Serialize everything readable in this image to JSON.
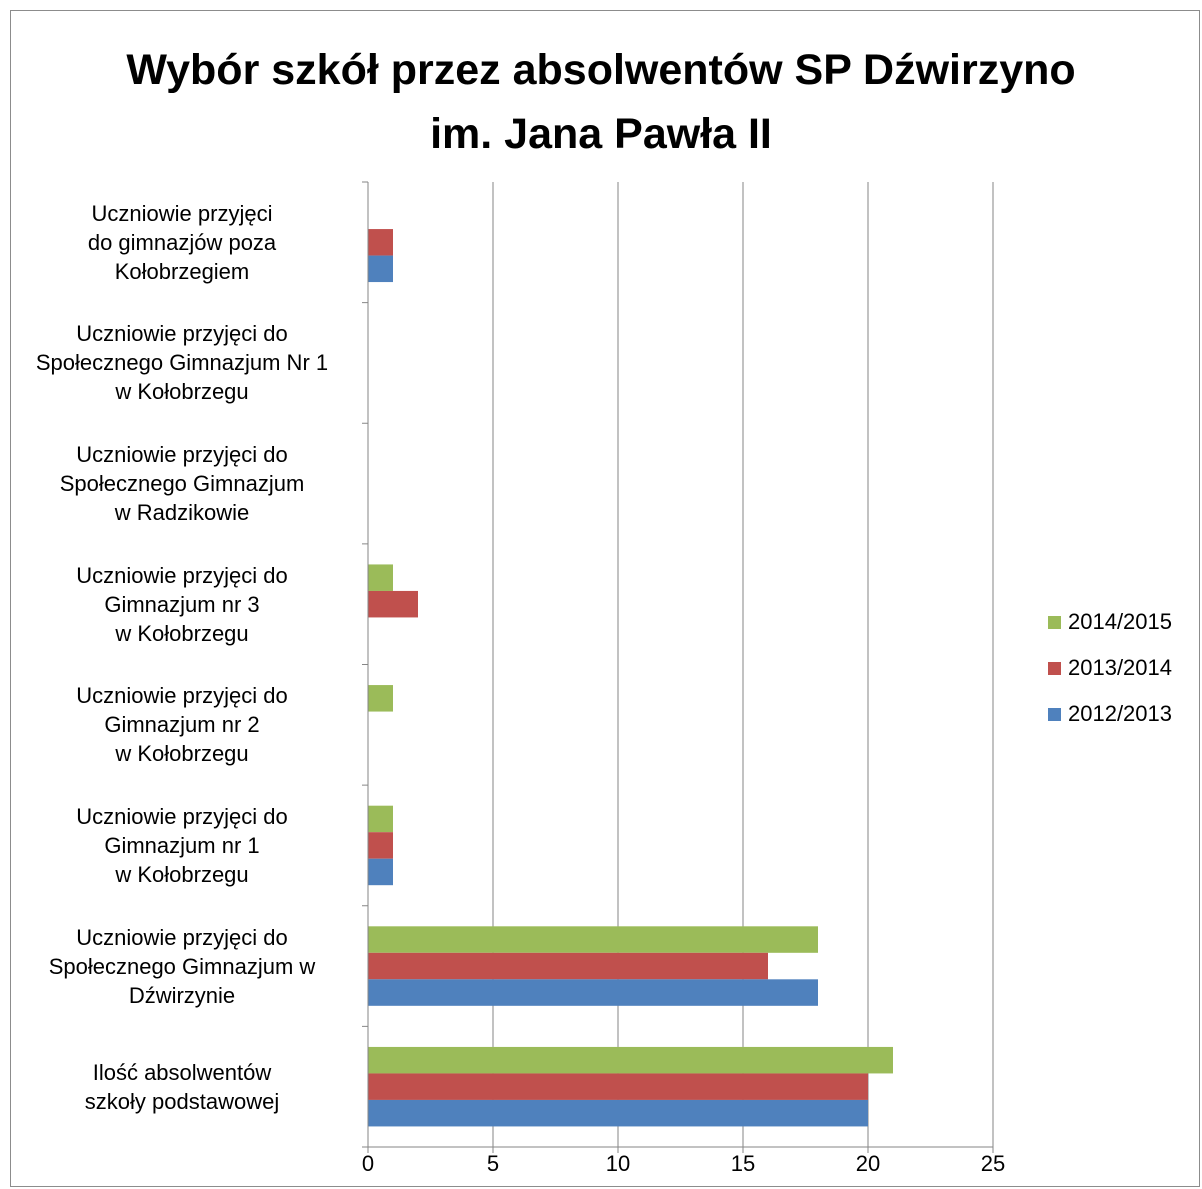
{
  "chart_data": {
    "type": "bar",
    "orientation": "horizontal",
    "title_lines": [
      "Wybór szkół przez absolwentów SP Dźwirzyno",
      "im. Jana Pawła II"
    ],
    "categories": [
      "Uczniowie przyjęci\ndo gimnazjów poza\nKołobrzegiem",
      "Uczniowie przyjęci do\nSpołecznego Gimnazjum Nr 1\nw Kołobrzegu",
      "Uczniowie przyjęci do\nSpołecznego Gimnazjum\nw Radzikowie",
      "Uczniowie przyjęci do\nGimnazjum nr 3\nw Kołobrzegu",
      "Uczniowie przyjęci do\nGimnazjum nr 2\nw Kołobrzegu",
      "Uczniowie przyjęci do\nGimnazjum nr 1\nw Kołobrzegu",
      "Uczniowie przyjęci do\nSpołecznego Gimnazjum w\nDźwirzynie",
      "Ilość absolwentów\nszkoły podstawowej"
    ],
    "series": [
      {
        "name": "2014/2015",
        "color": "#9bbb59",
        "values": [
          0,
          0,
          0,
          1,
          1,
          1,
          18,
          21
        ]
      },
      {
        "name": "2013/2014",
        "color": "#c0504d",
        "values": [
          1,
          0,
          0,
          2,
          0,
          1,
          16,
          20
        ]
      },
      {
        "name": "2012/2013",
        "color": "#4f81bd",
        "values": [
          1,
          0,
          0,
          0,
          0,
          1,
          18,
          20
        ]
      }
    ],
    "legend_order": [
      "2014/2015",
      "2013/2014",
      "2012/2013"
    ],
    "legend_position": "right",
    "xlim": [
      0,
      25
    ],
    "x_ticks": [
      0,
      5,
      10,
      15,
      20,
      25
    ],
    "grid": "vertical"
  }
}
